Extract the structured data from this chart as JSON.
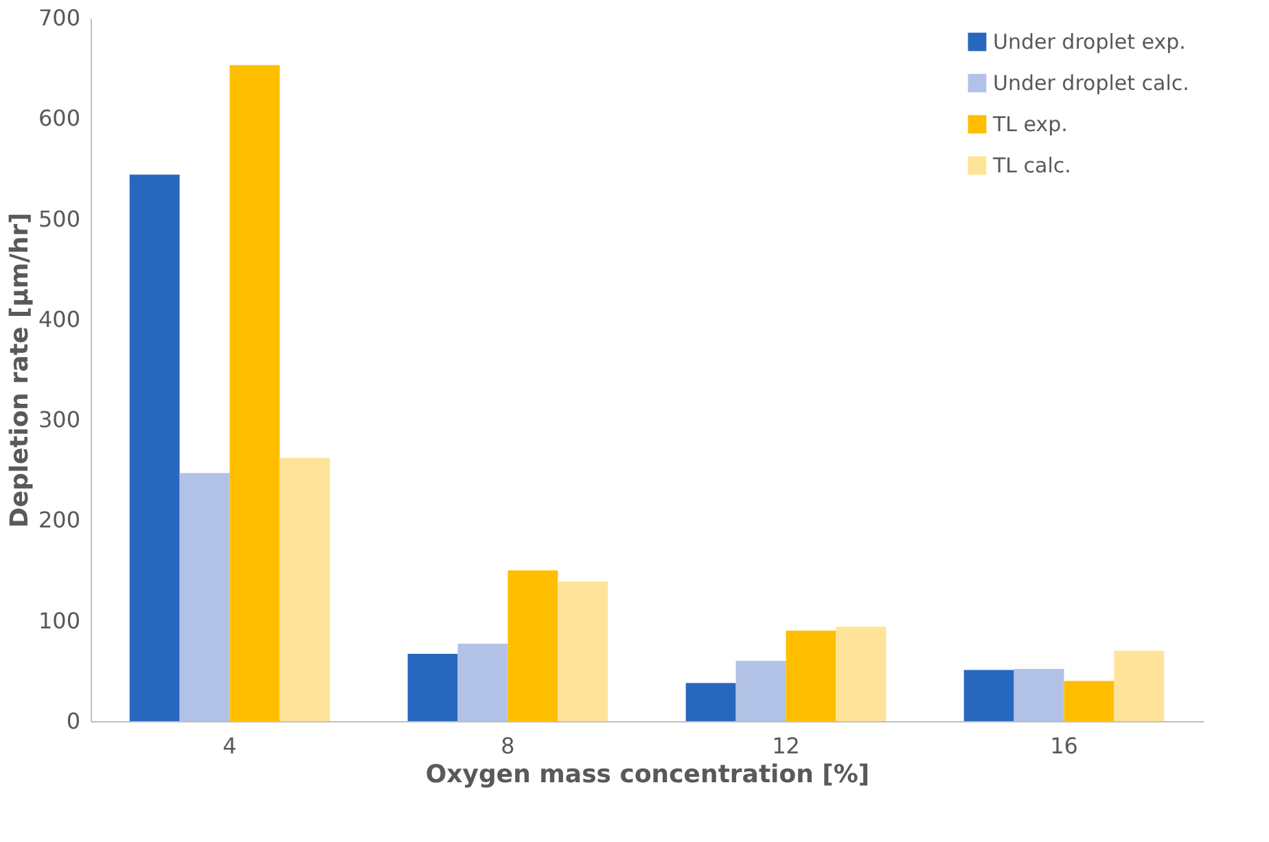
{
  "chart_data": {
    "type": "bar",
    "xlabel": "Oxygen mass concentration [%]",
    "ylabel": "Depletion rate [μm/hr]",
    "categories": [
      "4",
      "8",
      "12",
      "16"
    ],
    "series": [
      {
        "name": "Under droplet exp.",
        "color": "#2867be",
        "values": [
          544,
          67,
          38,
          51
        ]
      },
      {
        "name": "Under droplet calc.",
        "color": "#b2c2e6",
        "values": [
          247,
          77,
          60,
          52
        ]
      },
      {
        "name": "TL exp.",
        "color": "#ffbe00",
        "values": [
          653,
          150,
          90,
          40
        ]
      },
      {
        "name": "TL calc.",
        "color": "#ffe398",
        "values": [
          262,
          139,
          94,
          70
        ]
      }
    ],
    "ylim": [
      0,
      700
    ],
    "yticks": [
      0,
      100,
      200,
      300,
      400,
      500,
      600,
      700
    ],
    "grid": false,
    "legend": "top right"
  }
}
